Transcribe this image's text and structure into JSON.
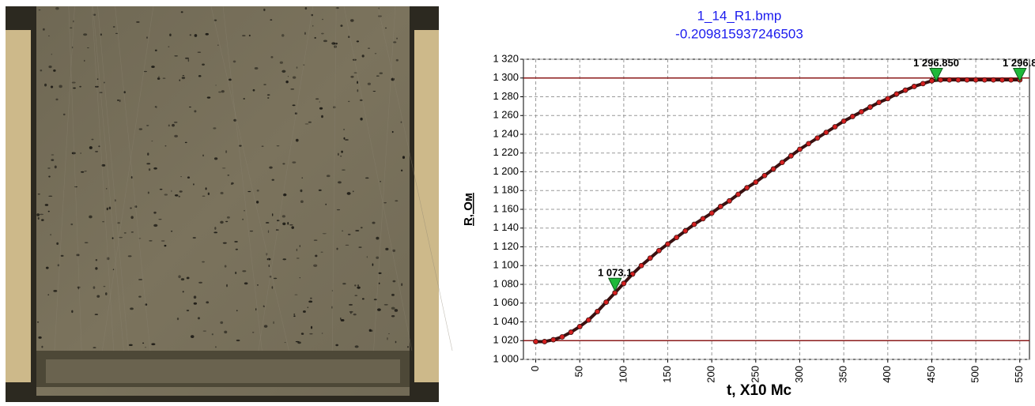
{
  "chart_data": {
    "type": "scatter",
    "title": "1_14_R1.bmp",
    "subtitle": "-0.209815937246503",
    "xlabel": "t, X10 Мс",
    "ylabel": "R, Ом",
    "x": [
      0,
      10,
      20,
      30,
      40,
      50,
      60,
      70,
      80,
      90,
      100,
      110,
      120,
      130,
      140,
      150,
      160,
      170,
      180,
      190,
      200,
      210,
      220,
      230,
      240,
      250,
      260,
      270,
      280,
      290,
      300,
      310,
      320,
      330,
      340,
      350,
      360,
      370,
      380,
      390,
      400,
      410,
      420,
      430,
      440,
      450,
      460,
      470,
      480,
      490,
      500,
      510,
      520,
      530,
      540,
      550
    ],
    "series": [
      {
        "color": "#d62020",
        "values": [
          1019,
          1019,
          1021,
          1024,
          1029,
          1035,
          1042,
          1051,
          1061,
          1071,
          1081,
          1091,
          1100,
          1108,
          1116,
          1123,
          1130,
          1137,
          1144,
          1150,
          1156,
          1163,
          1169,
          1176,
          1183,
          1189,
          1196,
          1203,
          1210,
          1217,
          1224,
          1230,
          1236,
          1242,
          1248,
          1254,
          1259,
          1264,
          1269,
          1274,
          1278,
          1283,
          1287,
          1291,
          1294,
          1297,
          1298,
          1298,
          1298,
          1298,
          1298,
          1298,
          1298,
          1298,
          1298,
          1298
        ]
      }
    ],
    "hlines": [
      1300,
      1020
    ],
    "hline_color": "#8b1a1a",
    "markers": {
      "color": "#1fb83a",
      "x": [
        90,
        455,
        550
      ],
      "values": [
        1073.1,
        1296.85,
        1296.8
      ],
      "value_labels": [
        "1 073.1",
        "1 296.850",
        "1 296.8"
      ]
    },
    "xlim": [
      -14,
      561
    ],
    "ylim": [
      1000,
      1320
    ],
    "xticks": [
      0,
      50,
      100,
      150,
      200,
      250,
      300,
      350,
      400,
      450,
      500,
      550
    ],
    "yticks": [
      {
        "value": 1000,
        "label": "1 000"
      },
      {
        "value": 1020,
        "label": "1 020"
      },
      {
        "value": 1040,
        "label": "1 040"
      },
      {
        "value": 1060,
        "label": "1 060"
      },
      {
        "value": 1080,
        "label": "1 080"
      },
      {
        "value": 1100,
        "label": "1 100"
      },
      {
        "value": 1120,
        "label": "1 120"
      },
      {
        "value": 1140,
        "label": "1 140"
      },
      {
        "value": 1160,
        "label": "1 160"
      },
      {
        "value": 1180,
        "label": "1 180"
      },
      {
        "value": 1200,
        "label": "1 200"
      },
      {
        "value": 1220,
        "label": "1 220"
      },
      {
        "value": 1240,
        "label": "1 240"
      },
      {
        "value": 1260,
        "label": "1 260"
      },
      {
        "value": 1280,
        "label": "1 280"
      },
      {
        "value": 1300,
        "label": "1 300"
      },
      {
        "value": 1320,
        "label": "1 320"
      }
    ],
    "grid": true
  }
}
